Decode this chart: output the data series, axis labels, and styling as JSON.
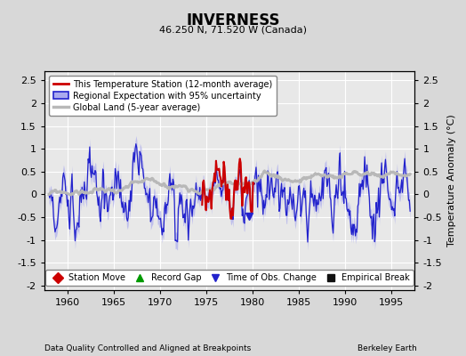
{
  "title": "INVERNESS",
  "subtitle": "46.250 N, 71.520 W (Canada)",
  "xlabel_left": "Data Quality Controlled and Aligned at Breakpoints",
  "xlabel_right": "Berkeley Earth",
  "ylabel": "Temperature Anomaly (°C)",
  "xlim": [
    1957.5,
    1997.5
  ],
  "ylim": [
    -2.1,
    2.7
  ],
  "yticks": [
    -2,
    -1.5,
    -1,
    -0.5,
    0,
    0.5,
    1,
    1.5,
    2,
    2.5
  ],
  "xticks": [
    1960,
    1965,
    1970,
    1975,
    1980,
    1985,
    1990,
    1995
  ],
  "bg_color": "#d8d8d8",
  "plot_bg_color": "#e8e8e8",
  "grid_color": "#ffffff",
  "station_color": "#cc0000",
  "regional_line_color": "#2222cc",
  "regional_fill_color": "#aaaaee",
  "global_color": "#b8b8b8",
  "legend_labels": [
    "This Temperature Station (12-month average)",
    "Regional Expectation with 95% uncertainty",
    "Global Land (5-year average)"
  ],
  "marker_labels": [
    "Station Move",
    "Record Gap",
    "Time of Obs. Change",
    "Empirical Break"
  ],
  "marker_colors": [
    "#cc0000",
    "#009900",
    "#2222cc",
    "#111111"
  ],
  "marker_symbols": [
    "D",
    "^",
    "v",
    "s"
  ]
}
